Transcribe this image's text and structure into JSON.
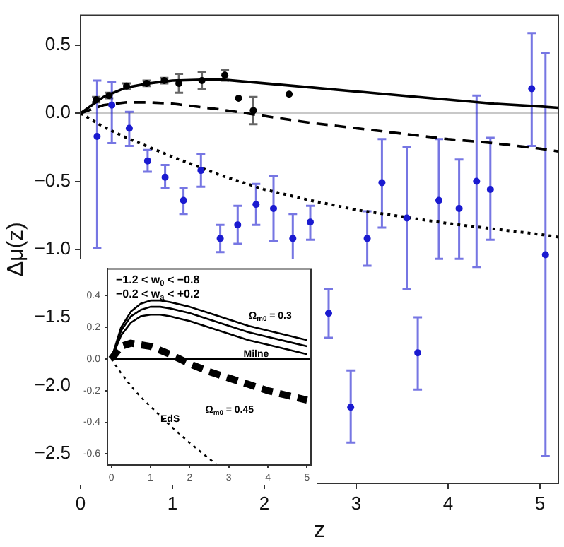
{
  "chart_data": [
    {
      "type": "scatter",
      "xlabel": "z",
      "ylabel": "Δμ(z)",
      "xlim": [
        0,
        5.2
      ],
      "xticks": [
        0,
        1,
        2,
        3,
        4,
        5
      ],
      "ylim": [
        -2.72,
        0.72
      ],
      "yticks": [
        {
          "value": -2.5,
          "label": "−2.5"
        },
        {
          "value": -2,
          "label": "−2.0"
        },
        {
          "value": -1.5,
          "label": "−1.5"
        },
        {
          "value": -1,
          "label": "−1.0"
        },
        {
          "value": -0.5,
          "label": "−0.5"
        },
        {
          "value": 0,
          "label": "0.0"
        },
        {
          "value": 0.5,
          "label": "0.5"
        }
      ],
      "ref_lines": [
        {
          "axis": "y",
          "value": 0,
          "color": "#c8c8c8"
        }
      ],
      "series": [
        {
          "type": "scatter",
          "marker": "circle",
          "color": "#000000",
          "x": [
            0.17,
            0.31,
            0.5,
            0.72,
            0.91,
            1.07,
            1.32,
            1.57,
            1.72,
            1.88,
            2.27
          ],
          "values": [
            0.1,
            0.13,
            0.2,
            0.22,
            0.24,
            0.22,
            0.24,
            0.28,
            0.11,
            0.02,
            0.14
          ],
          "errors": [
            0.02,
            0.02,
            0.02,
            0.02,
            0.02,
            0.07,
            0.06,
            0.04,
            null,
            0.1,
            null
          ]
        },
        {
          "type": "scatter",
          "marker": "circle",
          "color": "#1a1ad0",
          "x": [
            0.18,
            0.34,
            0.53,
            0.73,
            0.92,
            1.12,
            1.31,
            1.52,
            1.71,
            1.91,
            2.1,
            2.31,
            2.5,
            2.7,
            2.94,
            3.12,
            3.28,
            3.55,
            3.67,
            3.9,
            4.12,
            4.31,
            4.46,
            4.91,
            5.06
          ],
          "values": [
            -0.17,
            0.06,
            -0.11,
            -0.35,
            -0.47,
            -0.64,
            -0.42,
            -0.92,
            -0.82,
            -0.67,
            -0.7,
            -0.92,
            -0.8,
            -1.47,
            -2.16,
            -0.92,
            -0.51,
            -0.77,
            -1.76,
            -0.64,
            -0.7,
            -0.5,
            -0.56,
            0.18,
            -1.04
          ],
          "errors": [
            [
              -0.99,
              0.24
            ],
            [
              -0.22,
              0.23
            ],
            [
              -0.24,
              0.01
            ],
            [
              -0.43,
              -0.27
            ],
            [
              -0.55,
              -0.38
            ],
            [
              -0.74,
              -0.55
            ],
            [
              -0.54,
              -0.3
            ],
            [
              -1.02,
              -0.82
            ],
            [
              -0.96,
              -0.68
            ],
            [
              -0.82,
              -0.52
            ],
            [
              -0.94,
              -0.46
            ],
            [
              -1.12,
              -0.74
            ],
            [
              -0.93,
              -0.68
            ],
            [
              -1.65,
              -1.29
            ],
            [
              -2.42,
              -1.89
            ],
            [
              -1.12,
              -0.72
            ],
            [
              -0.84,
              -0.19
            ],
            [
              -1.29,
              -0.25
            ],
            [
              -2.03,
              -1.5
            ],
            [
              -1.07,
              -0.19
            ],
            [
              -1.07,
              -0.34
            ],
            [
              -1.13,
              0.13
            ],
            [
              -0.93,
              -0.18
            ],
            [
              -0.24,
              0.59
            ],
            [
              -2.52,
              0.44
            ]
          ]
        },
        {
          "type": "line",
          "marker": "none",
          "line_style": "solid",
          "color": "#000000",
          "x": [
            0,
            0.25,
            0.5,
            0.75,
            1,
            1.5,
            2,
            2.5,
            3,
            3.5,
            4,
            4.5,
            5,
            5.2
          ],
          "values": [
            0,
            0.12,
            0.19,
            0.22,
            0.24,
            0.25,
            0.22,
            0.19,
            0.16,
            0.13,
            0.1,
            0.07,
            0.05,
            0.04
          ]
        },
        {
          "type": "line",
          "marker": "none",
          "line_style": "dashed",
          "color": "#000000",
          "x": [
            0,
            0.25,
            0.5,
            0.75,
            1,
            1.5,
            2,
            2.5,
            3,
            3.5,
            4,
            4.5,
            5,
            5.2
          ],
          "values": [
            0,
            0.06,
            0.08,
            0.08,
            0.07,
            0.03,
            -0.02,
            -0.07,
            -0.11,
            -0.15,
            -0.19,
            -0.22,
            -0.26,
            -0.28
          ]
        },
        {
          "type": "line",
          "marker": "none",
          "line_style": "dotted",
          "color": "#000000",
          "x": [
            0,
            0.25,
            0.5,
            0.75,
            1,
            1.5,
            2,
            2.5,
            3,
            3.5,
            4,
            4.5,
            5,
            5.2
          ],
          "values": [
            0,
            -0.1,
            -0.18,
            -0.25,
            -0.32,
            -0.45,
            -0.56,
            -0.64,
            -0.71,
            -0.76,
            -0.81,
            -0.85,
            -0.89,
            -0.91
          ]
        }
      ]
    },
    {
      "type": "line",
      "xlim": [
        -0.1,
        5.1
      ],
      "xticks": [
        0,
        1,
        2,
        3,
        4,
        5
      ],
      "ylim": [
        -0.67,
        0.57
      ],
      "yticks": [
        {
          "value": -0.6,
          "label": "-0.6"
        },
        {
          "value": -0.4,
          "label": "-0.4"
        },
        {
          "value": -0.2,
          "label": "-0.2"
        },
        {
          "value": 0,
          "label": "0.0"
        },
        {
          "value": 0.2,
          "label": "0.2"
        },
        {
          "value": 0.4,
          "label": "0.4"
        }
      ],
      "annotations": [
        "−1.2 < w$_{0}$ < −0.8",
        "−0.2 < w$_{a}$ < +0.2",
        "Ω$_{m0}$ = 0.3",
        {
          "text": "Milne",
          "x": 3.7,
          "y": 0.03
        },
        "Ω$_{m0}$ = 0.45",
        {
          "text": "EdS",
          "x": 1.5,
          "y": -0.38
        }
      ],
      "series": [
        {
          "marker": "none",
          "line_style": "solid",
          "color": "#000000",
          "x": [
            0,
            0.25,
            0.5,
            0.75,
            1,
            1.25,
            1.5,
            2,
            2.5,
            3,
            3.5,
            4,
            4.5,
            5
          ],
          "values": [
            0,
            0.2,
            0.3,
            0.35,
            0.37,
            0.37,
            0.36,
            0.33,
            0.29,
            0.25,
            0.21,
            0.18,
            0.15,
            0.12
          ]
        },
        {
          "marker": "none",
          "line_style": "solid",
          "color": "#000000",
          "x": [
            0,
            0.25,
            0.5,
            0.75,
            1,
            1.25,
            1.5,
            2,
            2.5,
            3,
            3.5,
            4,
            4.5,
            5
          ],
          "values": [
            0,
            0.18,
            0.27,
            0.31,
            0.33,
            0.33,
            0.32,
            0.29,
            0.25,
            0.21,
            0.17,
            0.14,
            0.11,
            0.08
          ]
        },
        {
          "marker": "none",
          "line_style": "solid",
          "color": "#000000",
          "x": [
            0,
            0.25,
            0.5,
            0.75,
            1,
            1.25,
            1.5,
            2,
            2.5,
            3,
            3.5,
            4,
            4.5,
            5
          ],
          "values": [
            0,
            0.15,
            0.23,
            0.27,
            0.28,
            0.28,
            0.27,
            0.24,
            0.2,
            0.16,
            0.12,
            0.09,
            0.06,
            0.03
          ]
        },
        {
          "marker": "none",
          "line_style": "dashed",
          "color": "#000000",
          "x": [
            0,
            0.25,
            0.5,
            1,
            1.5,
            2,
            2.5,
            3,
            3.5,
            4,
            4.5,
            5
          ],
          "values": [
            0,
            0.08,
            0.1,
            0.08,
            0.03,
            -0.03,
            -0.08,
            -0.12,
            -0.16,
            -0.2,
            -0.23,
            -0.26
          ]
        },
        {
          "marker": "none",
          "line_style": "solid",
          "color": "#000000",
          "x": [
            0,
            5.1
          ],
          "values": [
            0,
            0
          ]
        },
        {
          "marker": "none",
          "line_style": "dotted",
          "color": "#000000",
          "x": [
            0,
            0.25,
            0.5,
            0.75,
            1,
            1.5,
            2,
            2.5,
            2.7
          ],
          "values": [
            0,
            -0.09,
            -0.17,
            -0.24,
            -0.3,
            -0.42,
            -0.53,
            -0.63,
            -0.67
          ]
        }
      ]
    }
  ]
}
